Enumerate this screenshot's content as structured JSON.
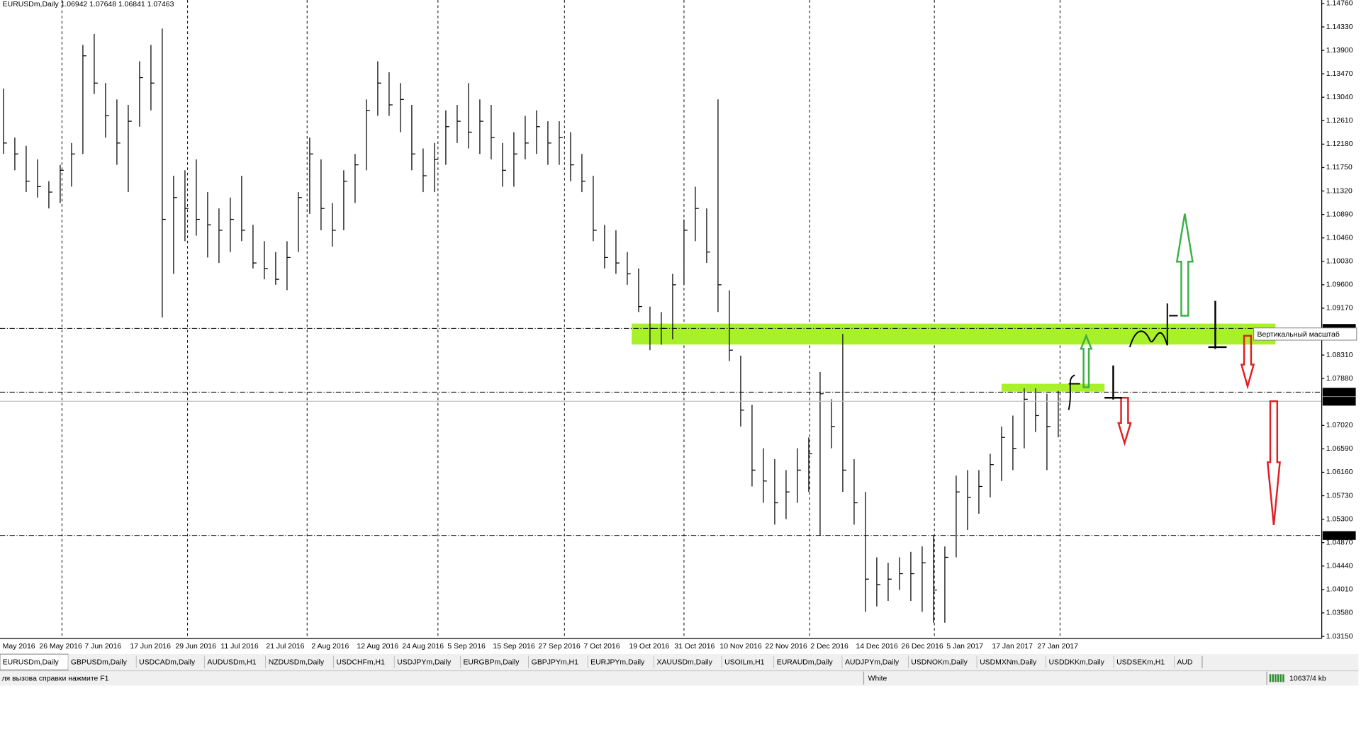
{
  "chart_data": {
    "type": "ohlc",
    "title": "EURUSDm,Daily 1.06942 1.07648 1.06841 1.07463",
    "categories": [
      null,
      "May 2016",
      null,
      null,
      null,
      "26 May 2016",
      null,
      null,
      null,
      "7 Jun 2016",
      null,
      null,
      null,
      "17 Jun 2016",
      null,
      null,
      null,
      "29 Jun 2016",
      null,
      null,
      null,
      "11 Jul 2016",
      null,
      null,
      null,
      "21 Jul 2016",
      null,
      null,
      null,
      "2 Aug 2016",
      null,
      null,
      null,
      "12 Aug 2016",
      null,
      null,
      null,
      "24 Aug 2016",
      null,
      null,
      null,
      "5 Sep 2016",
      null,
      null,
      null,
      "15 Sep 2016",
      null,
      null,
      null,
      "27 Sep 2016",
      null,
      null,
      null,
      "7 Oct 2016",
      null,
      null,
      null,
      "19 Oct 2016",
      null,
      null,
      null,
      "31 Oct 2016",
      null,
      null,
      null,
      "10 Nov 2016",
      null,
      null,
      null,
      "22 Nov 2016",
      null,
      null,
      null,
      "2 Dec 2016",
      null,
      null,
      null,
      "14 Dec 2016",
      null,
      null,
      null,
      "26 Dec 2016",
      null,
      null,
      null,
      "5 Jan 2017",
      null,
      null,
      null,
      "17 Jan 2017",
      null,
      null,
      null,
      "27 Jan 2017"
    ],
    "high": [
      1.132,
      1.123,
      1.1215,
      1.119,
      1.115,
      1.118,
      1.122,
      1.14,
      1.142,
      1.133,
      1.13,
      1.129,
      1.137,
      1.14,
      1.143,
      1.116,
      1.117,
      1.119,
      1.113,
      1.11,
      1.112,
      1.116,
      1.107,
      1.104,
      1.102,
      1.104,
      1.113,
      1.123,
      1.119,
      1.111,
      1.117,
      1.12,
      1.13,
      1.137,
      1.135,
      1.133,
      1.129,
      1.121,
      1.122,
      1.128,
      1.129,
      1.133,
      1.13,
      1.129,
      1.122,
      1.124,
      1.127,
      1.128,
      1.126,
      1.126,
      1.124,
      1.12,
      1.116,
      1.107,
      1.106,
      1.102,
      1.099,
      1.092,
      1.091,
      1.098,
      1.108,
      1.114,
      1.11,
      1.13,
      1.095,
      1.083,
      1.074,
      1.066,
      1.064,
      1.062,
      1.066,
      1.068,
      1.08,
      1.075,
      1.087,
      1.064,
      1.058,
      1.046,
      1.045,
      1.046,
      1.047,
      1.048,
      1.05,
      1.048,
      1.061,
      1.062,
      1.062,
      1.065,
      1.07,
      1.072,
      1.077,
      1.077,
      1.076,
      1.0765
    ],
    "low": [
      1.12,
      1.117,
      1.113,
      1.112,
      1.11,
      1.111,
      1.114,
      1.12,
      1.131,
      1.123,
      1.118,
      1.113,
      1.125,
      1.128,
      1.09,
      1.098,
      1.104,
      1.105,
      1.101,
      1.1,
      1.102,
      1.104,
      1.099,
      1.097,
      1.096,
      1.095,
      1.102,
      1.109,
      1.106,
      1.103,
      1.106,
      1.111,
      1.117,
      1.127,
      1.127,
      1.124,
      1.117,
      1.113,
      1.113,
      1.118,
      1.122,
      1.121,
      1.12,
      1.119,
      1.114,
      1.114,
      1.119,
      1.12,
      1.118,
      1.118,
      1.115,
      1.113,
      1.104,
      1.099,
      1.098,
      1.096,
      1.091,
      1.084,
      1.085,
      1.086,
      1.096,
      1.104,
      1.1,
      1.091,
      1.082,
      1.07,
      1.059,
      1.056,
      1.052,
      1.053,
      1.056,
      1.058,
      1.05,
      1.066,
      1.058,
      1.052,
      1.036,
      1.037,
      1.038,
      1.04,
      1.038,
      1.036,
      1.034,
      1.034,
      1.046,
      1.051,
      1.054,
      1.057,
      1.06,
      1.062,
      1.066,
      1.069,
      1.062,
      1.068
    ],
    "close": [
      1.122,
      1.12,
      1.115,
      1.114,
      1.113,
      1.117,
      1.12,
      1.138,
      1.133,
      1.127,
      1.122,
      1.126,
      1.134,
      1.133,
      1.108,
      1.112,
      1.11,
      1.108,
      1.107,
      1.106,
      1.108,
      1.106,
      1.1,
      1.099,
      1.097,
      1.101,
      1.112,
      1.12,
      1.11,
      1.106,
      1.115,
      1.118,
      1.128,
      1.133,
      1.129,
      1.13,
      1.12,
      1.116,
      1.119,
      1.125,
      1.126,
      1.124,
      1.126,
      1.123,
      1.117,
      1.12,
      1.122,
      1.125,
      1.122,
      1.123,
      1.118,
      1.115,
      1.106,
      1.101,
      1.1,
      1.098,
      1.092,
      1.088,
      1.088,
      1.096,
      1.106,
      1.11,
      1.102,
      1.096,
      1.084,
      1.073,
      1.062,
      1.06,
      1.056,
      1.058,
      1.062,
      1.065,
      1.076,
      1.07,
      1.062,
      1.056,
      1.042,
      1.041,
      1.042,
      1.043,
      1.043,
      1.045,
      1.04,
      1.046,
      1.058,
      1.057,
      1.059,
      1.063,
      1.068,
      1.066,
      1.075,
      1.072,
      1.07,
      1.07463
    ],
    "ylim": [
      1.03112,
      1.14824
    ],
    "yticks": [
      {
        "value": 1.1476,
        "label": "1.14760"
      },
      {
        "value": 1.1433,
        "label": "1.14330"
      },
      {
        "value": 1.139,
        "label": "1.13900"
      },
      {
        "value": 1.1347,
        "label": "1.13470"
      },
      {
        "value": 1.1304,
        "label": "1.13040"
      },
      {
        "value": 1.1261,
        "label": "1.12610"
      },
      {
        "value": 1.1218,
        "label": "1.12180"
      },
      {
        "value": 1.1175,
        "label": "1.11750"
      },
      {
        "value": 1.1132,
        "label": "1.11320"
      },
      {
        "value": 1.1089,
        "label": "1.10890"
      },
      {
        "value": 1.1046,
        "label": "1.10460"
      },
      {
        "value": 1.1003,
        "label": "1.10030"
      },
      {
        "value": 1.096,
        "label": "1.09600"
      },
      {
        "value": 1.0917,
        "label": "1.09170"
      },
      {
        "value": 1.0831,
        "label": "1.08310"
      },
      {
        "value": 1.0788,
        "label": "1.07880"
      },
      {
        "value": 1.0702,
        "label": "1.07020"
      },
      {
        "value": 1.0659,
        "label": "1.06590"
      },
      {
        "value": 1.0616,
        "label": "1.06160"
      },
      {
        "value": 1.0573,
        "label": "1.05730"
      },
      {
        "value": 1.053,
        "label": "1.05300"
      },
      {
        "value": 1.0487,
        "label": "1.04870"
      },
      {
        "value": 1.0444,
        "label": "1.04440"
      },
      {
        "value": 1.0401,
        "label": "1.04010"
      },
      {
        "value": 1.0358,
        "label": "1.03580"
      },
      {
        "value": 1.0315,
        "label": "1.03150"
      }
    ],
    "levels": [
      {
        "value": 1.088,
        "label": "1.08800"
      },
      {
        "value": 1.0763,
        "label": "1.07630"
      },
      {
        "value": 1.05,
        "label": "1.05000"
      }
    ],
    "current_price": 1.07463
  },
  "tooltip": "Вертикальный масштаб",
  "tabs": [
    "EURUSDm,Daily",
    "GBPUSDm,Daily",
    "USDCADm,Daily",
    "AUDUSDm,H1",
    "NZDUSDm,Daily",
    "USDCHFm,H1",
    "USDJPYm,Daily",
    "EURGBPm,Daily",
    "GBPJPYm,H1",
    "EURJPYm,Daily",
    "XAUUSDm,Daily",
    "USOILm,H1",
    "EURAUDm,Daily",
    "AUDJPYm,Daily",
    "USDNOKm,Daily",
    "USDMXNm,Daily",
    "USDDKKm,Daily",
    "USDSEKm,H1",
    "AUD"
  ],
  "status": {
    "help": "ля вызова справки нажмите F1",
    "template": "White",
    "traffic": "10637/4 kb"
  }
}
